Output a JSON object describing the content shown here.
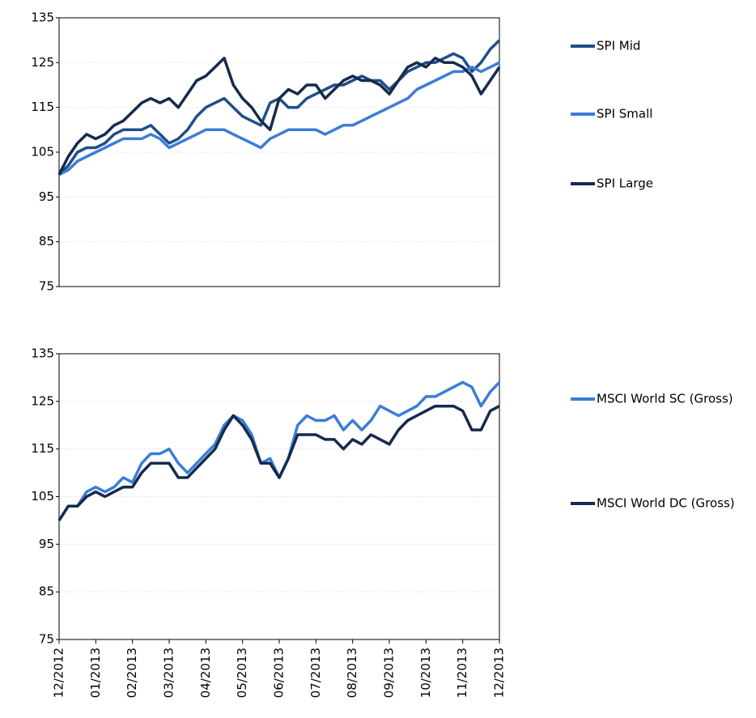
{
  "chart_data": [
    {
      "type": "line",
      "x": [
        0,
        0.25,
        0.5,
        0.75,
        1,
        1.25,
        1.5,
        1.75,
        2,
        2.25,
        2.5,
        2.75,
        3,
        3.25,
        3.5,
        3.75,
        4,
        4.25,
        4.5,
        4.75,
        5,
        5.25,
        5.5,
        5.75,
        6,
        6.25,
        6.5,
        6.75,
        7,
        7.25,
        7.5,
        7.75,
        8,
        8.25,
        8.5,
        8.75,
        9,
        9.25,
        9.5,
        9.75,
        10,
        10.25,
        10.5,
        10.75,
        11,
        11.25,
        11.5,
        11.75,
        12
      ],
      "xlim": [
        0,
        12
      ],
      "ylim": [
        75,
        135
      ],
      "yticks": [
        75,
        85,
        95,
        105,
        115,
        125,
        135
      ],
      "grid": true,
      "series": [
        {
          "name": "SPI Mid",
          "color": "#1f4e8c",
          "values": [
            100,
            102,
            105,
            106,
            106,
            107,
            109,
            110,
            110,
            110,
            111,
            109,
            107,
            108,
            110,
            113,
            115,
            116,
            117,
            115,
            113,
            112,
            111,
            116,
            117,
            115,
            115,
            117,
            118,
            119,
            120,
            120,
            121,
            122,
            121,
            121,
            119,
            121,
            123,
            124,
            125,
            125,
            126,
            127,
            126,
            123,
            125,
            128,
            130
          ]
        },
        {
          "name": "SPI Small",
          "color": "#3b7dd8",
          "values": [
            100,
            101,
            103,
            104,
            105,
            106,
            107,
            108,
            108,
            108,
            109,
            108,
            106,
            107,
            108,
            109,
            110,
            110,
            110,
            109,
            108,
            107,
            106,
            108,
            109,
            110,
            110,
            110,
            110,
            109,
            110,
            111,
            111,
            112,
            113,
            114,
            115,
            116,
            117,
            119,
            120,
            121,
            122,
            123,
            123,
            124,
            123,
            124,
            125
          ]
        },
        {
          "name": "SPI Large",
          "color": "#152a4e",
          "values": [
            100,
            104,
            107,
            109,
            108,
            109,
            111,
            112,
            114,
            116,
            117,
            116,
            117,
            115,
            118,
            121,
            122,
            124,
            126,
            120,
            117,
            115,
            112,
            110,
            117,
            119,
            118,
            120,
            120,
            117,
            119,
            121,
            122,
            121,
            121,
            120,
            118,
            121,
            124,
            125,
            124,
            126,
            125,
            125,
            124,
            122,
            118,
            121,
            124
          ]
        }
      ]
    },
    {
      "type": "line",
      "x": [
        0,
        0.25,
        0.5,
        0.75,
        1,
        1.25,
        1.5,
        1.75,
        2,
        2.25,
        2.5,
        2.75,
        3,
        3.25,
        3.5,
        3.75,
        4,
        4.25,
        4.5,
        4.75,
        5,
        5.25,
        5.5,
        5.75,
        6,
        6.25,
        6.5,
        6.75,
        7,
        7.25,
        7.5,
        7.75,
        8,
        8.25,
        8.5,
        8.75,
        9,
        9.25,
        9.5,
        9.75,
        10,
        10.25,
        10.5,
        10.75,
        11,
        11.25,
        11.5,
        11.75,
        12
      ],
      "xlim": [
        0,
        12
      ],
      "xticks": [
        {
          "value": 0,
          "label": "12/2012"
        },
        {
          "value": 1,
          "label": "01/2013"
        },
        {
          "value": 2,
          "label": "02/2013"
        },
        {
          "value": 3,
          "label": "03/2013"
        },
        {
          "value": 4,
          "label": "04/2013"
        },
        {
          "value": 5,
          "label": "05/2013"
        },
        {
          "value": 6,
          "label": "06/2013"
        },
        {
          "value": 7,
          "label": "07/2013"
        },
        {
          "value": 8,
          "label": "08/2013"
        },
        {
          "value": 9,
          "label": "09/2013"
        },
        {
          "value": 10,
          "label": "10/2013"
        },
        {
          "value": 11,
          "label": "11/2013"
        },
        {
          "value": 12,
          "label": "12/2013"
        }
      ],
      "ylim": [
        75,
        135
      ],
      "yticks": [
        75,
        85,
        95,
        105,
        115,
        125,
        135
      ],
      "grid": true,
      "series": [
        {
          "name": "MSCI World SC (Gross)",
          "color": "#3b7dd8",
          "values": [
            100,
            103,
            103,
            106,
            107,
            106,
            107,
            109,
            108,
            112,
            114,
            114,
            115,
            112,
            110,
            112,
            114,
            116,
            120,
            122,
            121,
            118,
            112,
            113,
            109,
            113,
            120,
            122,
            121,
            121,
            122,
            119,
            121,
            119,
            121,
            124,
            123,
            122,
            123,
            124,
            126,
            126,
            127,
            128,
            129,
            128,
            124,
            127,
            129
          ]
        },
        {
          "name": "MSCI World DC (Gross)",
          "color": "#152a4e",
          "values": [
            100,
            103,
            103,
            105,
            106,
            105,
            106,
            107,
            107,
            110,
            112,
            112,
            112,
            109,
            109,
            111,
            113,
            115,
            119,
            122,
            120,
            117,
            112,
            112,
            109,
            113,
            118,
            118,
            118,
            117,
            117,
            115,
            117,
            116,
            118,
            117,
            116,
            119,
            121,
            122,
            123,
            124,
            124,
            124,
            123,
            119,
            119,
            123,
            124
          ]
        }
      ]
    }
  ]
}
